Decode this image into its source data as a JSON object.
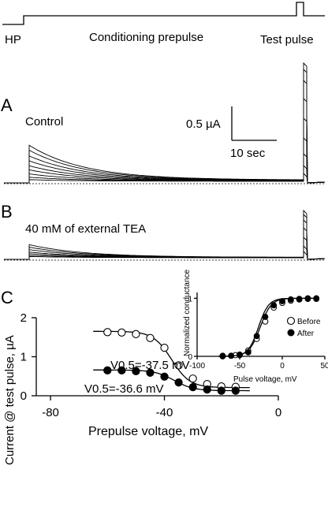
{
  "protocol": {
    "hp_label": "HP",
    "prepulse_label": "Conditioning prepulse",
    "test_label": "Test pulse"
  },
  "panels": {
    "a": {
      "letter": "A",
      "condition": "Control"
    },
    "b": {
      "letter": "B",
      "condition": "40 mM of external TEA"
    },
    "c": {
      "letter": "C"
    }
  },
  "scalebar": {
    "current": "0.5 µA",
    "time": "10 sec"
  },
  "chart_data": [
    {
      "type": "scatter",
      "xlabel": "Prepulse voltage, mV",
      "ylabel": "Current @ test pulse, µA",
      "xlim": [
        -85,
        0
      ],
      "ylim": [
        0,
        2
      ],
      "xticks": [
        -80,
        -40,
        0
      ],
      "yticks": [
        0,
        1,
        2
      ],
      "series": [
        {
          "marker": "open-circle",
          "x": [
            -60,
            -55,
            -50,
            -45,
            -40,
            -35,
            -30,
            -25,
            -20,
            -15
          ],
          "y": [
            1.63,
            1.62,
            1.58,
            1.48,
            1.23,
            0.78,
            0.44,
            0.3,
            0.24,
            0.23
          ],
          "fit": {
            "v50": -37.5,
            "k": 3.2,
            "top": 1.65,
            "bottom": 0.21
          }
        },
        {
          "marker": "filled-circle",
          "x": [
            -60,
            -55,
            -50,
            -45,
            -40,
            -35,
            -30,
            -25,
            -20,
            -15
          ],
          "y": [
            0.65,
            0.65,
            0.63,
            0.59,
            0.49,
            0.34,
            0.22,
            0.16,
            0.13,
            0.13
          ],
          "fit": {
            "v50": -36.6,
            "k": 3.4,
            "top": 0.66,
            "bottom": 0.13
          }
        }
      ],
      "annotations": [
        "V0.5=-37.5 mV",
        "V0.5=-36.6 mV"
      ]
    },
    {
      "type": "scatter",
      "xlabel": "Pulse voltage, mV",
      "ylabel": "Normalized conductance",
      "xlim": [
        -100,
        50
      ],
      "ylim": [
        0,
        1.1
      ],
      "xticks": [
        -100,
        -50,
        0,
        50
      ],
      "xticklabels": [
        "-100",
        "-50",
        "0",
        "50"
      ],
      "yticks": [
        0,
        1
      ],
      "legend": "bottom-right",
      "series": [
        {
          "name": "Before",
          "marker": "open-circle",
          "x": [
            -70,
            -60,
            -55,
            -50,
            -40,
            -30,
            -20,
            -10,
            0,
            10,
            20,
            30,
            40
          ],
          "y": [
            0.01,
            0.01,
            0.02,
            0.03,
            0.1,
            0.3,
            0.6,
            0.84,
            0.92,
            0.96,
            0.98,
            0.99,
            0.99
          ],
          "fit": {
            "v50": -26,
            "k": 6.5
          }
        },
        {
          "name": "After",
          "marker": "filled-circle",
          "x": [
            -70,
            -60,
            -50,
            -40,
            -30,
            -20,
            -10,
            0,
            10,
            20,
            30,
            40
          ],
          "y": [
            0.0,
            0.01,
            0.02,
            0.07,
            0.35,
            0.68,
            0.88,
            0.95,
            0.98,
            0.99,
            1.0,
            1.0
          ],
          "fit": {
            "v50": -28,
            "k": 6.0
          }
        }
      ]
    }
  ],
  "text": {
    "main_xlabel": "Prepulse voltage, mV",
    "main_ylabel": "Current @ test pulse, µA",
    "main_xticks": [
      "-80",
      "-40",
      "0"
    ],
    "main_yticks": [
      "0",
      "1",
      "2"
    ],
    "v05_before": "V0.5=-37.5 mV",
    "v05_after": "V0.5=-36.6 mV",
    "inset_xlabel": "Pulse voltage, mV",
    "inset_ylabel": "Normalized conductance",
    "inset_xticks": [
      "-100",
      "-50",
      "0",
      "50"
    ],
    "inset_yticks": [
      "0",
      "1"
    ],
    "legend_before": "Before",
    "legend_after": "After"
  }
}
